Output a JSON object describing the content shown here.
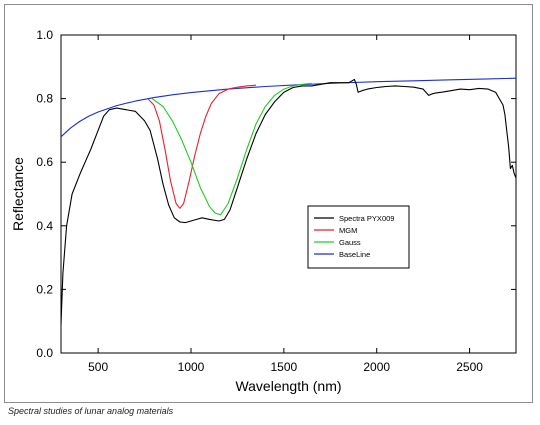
{
  "caption": "Spectral studies of lunar analog materials",
  "chart_data": {
    "type": "line",
    "xlabel": "Wavelength (nm)",
    "ylabel": "Reflectance",
    "xlim": [
      300,
      2750
    ],
    "ylim": [
      0.0,
      1.0
    ],
    "xticks": [
      500,
      1000,
      1500,
      2000,
      2500
    ],
    "xtick_labels": [
      "500",
      "1000",
      "1500",
      "2000",
      "2500"
    ],
    "yticks": [
      0.0,
      0.2,
      0.4,
      0.6,
      0.8,
      1.0
    ],
    "ytick_labels": [
      "0.0",
      "0.2",
      "0.4",
      "0.6",
      "0.8",
      "1.0"
    ],
    "grid": false,
    "legend_position": "center-right",
    "series": [
      {
        "name": "Spectra PYX009",
        "color": "#000000",
        "x": [
          300,
          310,
          330,
          360,
          400,
          430,
          460,
          500,
          530,
          560,
          600,
          650,
          700,
          750,
          780,
          820,
          850,
          880,
          910,
          940,
          970,
          1000,
          1030,
          1060,
          1100,
          1150,
          1180,
          1210,
          1250,
          1300,
          1350,
          1400,
          1450,
          1500,
          1550,
          1600,
          1650,
          1700,
          1750,
          1800,
          1850,
          1880,
          1890,
          1900,
          1920,
          1950,
          2000,
          2050,
          2100,
          2150,
          2200,
          2250,
          2280,
          2300,
          2320,
          2350,
          2400,
          2450,
          2500,
          2550,
          2600,
          2620,
          2640,
          2660,
          2680,
          2690,
          2700,
          2710,
          2720,
          2730,
          2740,
          2750
        ],
        "y": [
          0.09,
          0.25,
          0.4,
          0.5,
          0.56,
          0.6,
          0.64,
          0.7,
          0.745,
          0.765,
          0.77,
          0.765,
          0.76,
          0.73,
          0.7,
          0.61,
          0.53,
          0.465,
          0.425,
          0.412,
          0.41,
          0.415,
          0.42,
          0.425,
          0.42,
          0.415,
          0.42,
          0.45,
          0.52,
          0.61,
          0.69,
          0.75,
          0.79,
          0.82,
          0.835,
          0.84,
          0.84,
          0.845,
          0.85,
          0.85,
          0.85,
          0.86,
          0.845,
          0.82,
          0.825,
          0.83,
          0.835,
          0.838,
          0.84,
          0.838,
          0.836,
          0.83,
          0.81,
          0.815,
          0.818,
          0.82,
          0.825,
          0.83,
          0.828,
          0.832,
          0.83,
          0.825,
          0.82,
          0.8,
          0.78,
          0.75,
          0.7,
          0.65,
          0.58,
          0.59,
          0.565,
          0.55
        ]
      },
      {
        "name": "MGM",
        "color": "#e8202a",
        "x": [
          770,
          800,
          830,
          860,
          890,
          920,
          940,
          960,
          990,
          1020,
          1050,
          1080,
          1110,
          1150,
          1200,
          1250,
          1300,
          1350
        ],
        "y": [
          0.798,
          0.78,
          0.73,
          0.64,
          0.54,
          0.47,
          0.455,
          0.47,
          0.54,
          0.62,
          0.69,
          0.745,
          0.785,
          0.815,
          0.83,
          0.836,
          0.84,
          0.842
        ]
      },
      {
        "name": "Gauss",
        "color": "#22cc22",
        "x": [
          790,
          850,
          900,
          950,
          1000,
          1050,
          1100,
          1130,
          1160,
          1200,
          1250,
          1300,
          1350,
          1400,
          1450,
          1500,
          1550,
          1600,
          1650
        ],
        "y": [
          0.8,
          0.775,
          0.73,
          0.67,
          0.6,
          0.52,
          0.46,
          0.44,
          0.435,
          0.47,
          0.55,
          0.64,
          0.72,
          0.775,
          0.81,
          0.83,
          0.84,
          0.845,
          0.848
        ]
      },
      {
        "name": "BaseLine",
        "color": "#1c2fd4",
        "x": [
          300,
          350,
          400,
          450,
          500,
          600,
          700,
          800,
          900,
          1000,
          1200,
          1400,
          1600,
          1800,
          2000,
          2200,
          2400,
          2600,
          2750
        ],
        "y": [
          0.68,
          0.707,
          0.728,
          0.745,
          0.758,
          0.778,
          0.792,
          0.803,
          0.812,
          0.819,
          0.83,
          0.838,
          0.844,
          0.849,
          0.853,
          0.856,
          0.859,
          0.862,
          0.864
        ]
      }
    ]
  }
}
